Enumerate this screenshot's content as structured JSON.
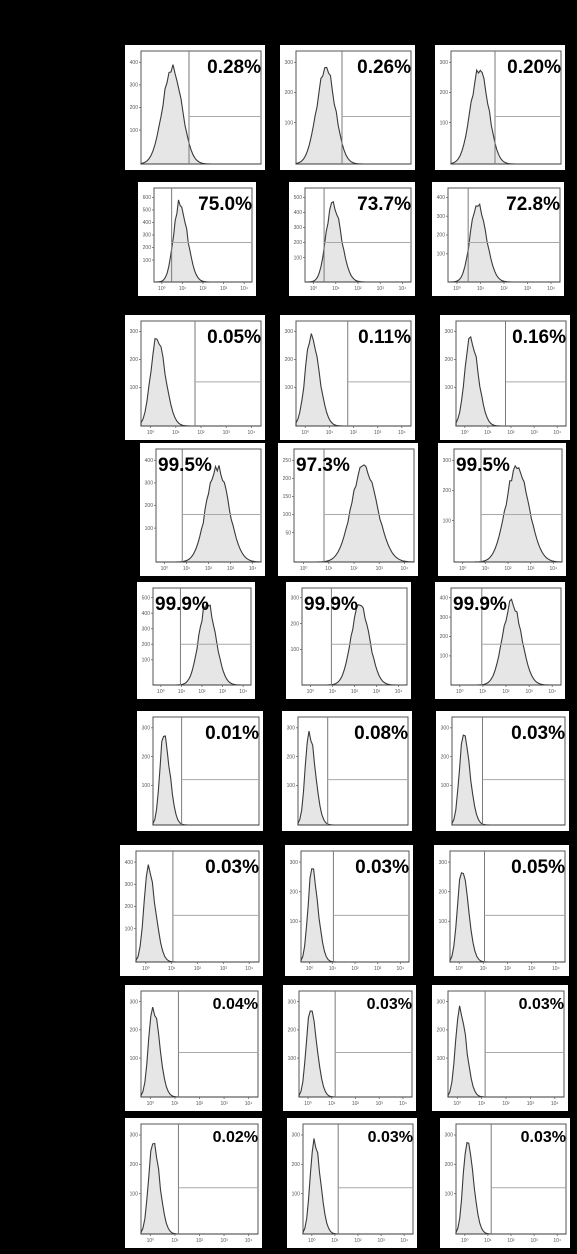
{
  "chart_data": {
    "type": "histogram-grid",
    "rows": 9,
    "columns": 3,
    "panels": [
      [
        {
          "label": "0.28%",
          "yticks": [
            "400",
            "300",
            "200",
            "100"
          ],
          "xticks": []
        },
        {
          "label": "0.26%",
          "yticks": [
            "300",
            "200",
            "100"
          ],
          "xticks": []
        },
        {
          "label": "0.20%",
          "yticks": [
            "300",
            "200",
            "100"
          ],
          "xticks": []
        }
      ],
      [
        {
          "label": "75.0%",
          "yticks": [
            "600",
            "500",
            "400",
            "300",
            "200",
            "100"
          ],
          "xticks": [
            "10⁰",
            "10¹",
            "10²",
            "10³",
            "10⁴"
          ]
        },
        {
          "label": "73.7%",
          "yticks": [
            "500",
            "400",
            "300",
            "200",
            "100"
          ],
          "xticks": [
            "10⁰",
            "10¹",
            "10²",
            "10³",
            "10⁴"
          ]
        },
        {
          "label": "72.8%",
          "yticks": [
            "400",
            "300",
            "200",
            "100"
          ],
          "xticks": [
            "10⁰",
            "10¹",
            "10²",
            "10³",
            "10⁴"
          ]
        }
      ],
      [
        {
          "label": "0.05%",
          "yticks": [
            "300",
            "200",
            "100"
          ],
          "xticks": [
            "10⁰",
            "10¹",
            "10²",
            "10³",
            "10⁴"
          ]
        },
        {
          "label": "0.11%",
          "yticks": [
            "300",
            "200",
            "100"
          ],
          "xticks": [
            "10⁰",
            "10¹",
            "10²",
            "10³",
            "10⁴"
          ]
        },
        {
          "label": "0.16%",
          "yticks": [
            "300",
            "200",
            "100"
          ],
          "xticks": [
            "10⁰",
            "10¹",
            "10²",
            "10³",
            "10⁴"
          ]
        }
      ],
      [
        {
          "label": "99.5%",
          "yticks": [
            "400",
            "300",
            "200",
            "100"
          ],
          "xticks": [
            "10⁰",
            "10¹",
            "10²",
            "10³",
            "10⁴"
          ]
        },
        {
          "label": "97.3%",
          "yticks": [
            "250",
            "200",
            "150",
            "100",
            "50"
          ],
          "xticks": [
            "10⁰",
            "10¹",
            "10²",
            "10³",
            "10⁴"
          ]
        },
        {
          "label": "99.5%",
          "yticks": [
            "300",
            "200",
            "100"
          ],
          "xticks": [
            "10⁰",
            "10¹",
            "10²",
            "10³",
            "10⁴"
          ]
        }
      ],
      [
        {
          "label": "99.9%",
          "yticks": [
            "500",
            "400",
            "300",
            "200",
            "100"
          ],
          "xticks": [
            "10⁰",
            "10¹",
            "10²",
            "10³",
            "10⁴"
          ]
        },
        {
          "label": "99.9%",
          "yticks": [
            "300",
            "200",
            "100"
          ],
          "xticks": [
            "10⁰",
            "10¹",
            "10²",
            "10³",
            "10⁴"
          ]
        },
        {
          "label": "99.9%",
          "yticks": [
            "400",
            "300",
            "200",
            "100"
          ],
          "xticks": [
            "10⁰",
            "10¹",
            "10²",
            "10³",
            "10⁴"
          ]
        }
      ],
      [
        {
          "label": "0.01%",
          "yticks": [
            "300",
            "200",
            "100"
          ],
          "xticks": []
        },
        {
          "label": "0.08%",
          "yticks": [
            "300",
            "200",
            "100"
          ],
          "xticks": []
        },
        {
          "label": "0.03%",
          "yticks": [
            "300",
            "200",
            "100"
          ],
          "xticks": []
        }
      ],
      [
        {
          "label": "0.03%",
          "yticks": [
            "400",
            "300",
            "200",
            "100"
          ],
          "xticks": [
            "10⁰",
            "10¹",
            "10²",
            "10³",
            "10⁴"
          ]
        },
        {
          "label": "0.03%",
          "yticks": [
            "300",
            "200",
            "100"
          ],
          "xticks": [
            "10⁰",
            "10¹",
            "10²",
            "10³",
            "10⁴"
          ]
        },
        {
          "label": "0.05%",
          "yticks": [
            "300",
            "200",
            "100"
          ],
          "xticks": [
            "10⁰",
            "10¹",
            "10²",
            "10³",
            "10⁴"
          ]
        }
      ],
      [
        {
          "label": "0.04%",
          "yticks": [
            "300",
            "200",
            "100"
          ],
          "xticks": [
            "10⁰",
            "10¹",
            "10²",
            "10³",
            "10⁴"
          ]
        },
        {
          "label": "0.03%",
          "yticks": [
            "300",
            "200",
            "100"
          ],
          "xticks": [
            "10⁰",
            "10¹",
            "10²",
            "10³",
            "10⁴"
          ]
        },
        {
          "label": "0.03%",
          "yticks": [
            "300",
            "200",
            "100"
          ],
          "xticks": [
            "10⁰",
            "10¹",
            "10²",
            "10³",
            "10⁴"
          ]
        }
      ],
      [
        {
          "label": "0.02%",
          "yticks": [
            "300",
            "200",
            "100"
          ],
          "xticks": [
            "10⁰",
            "10¹",
            "10²",
            "10³",
            "10⁴"
          ]
        },
        {
          "label": "0.03%",
          "yticks": [
            "300",
            "200",
            "100"
          ],
          "xticks": [
            "10⁰",
            "10¹",
            "10²",
            "10³",
            "10⁴"
          ]
        },
        {
          "label": "0.03%",
          "yticks": [
            "300",
            "200",
            "100"
          ],
          "xticks": [
            "10⁰",
            "10¹",
            "10²",
            "10³",
            "10⁴"
          ]
        }
      ]
    ],
    "colors": {
      "background": "#000000",
      "panel": "#ffffff",
      "fill": "#e6e6e6",
      "line": "#3a3a3a"
    }
  }
}
